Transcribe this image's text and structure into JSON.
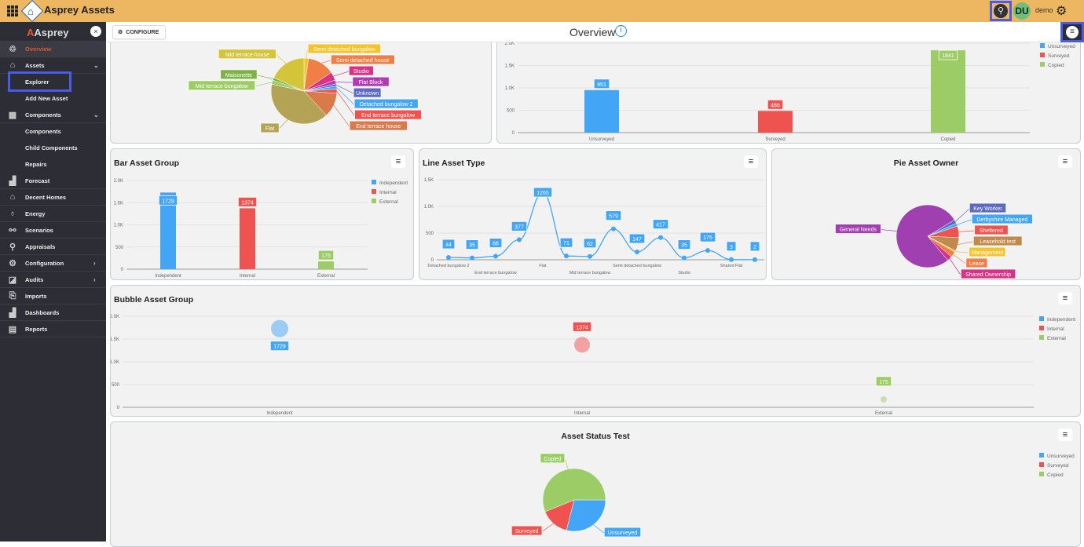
{
  "header": {
    "app_title": "Asprey Assets",
    "user_initials": "DU",
    "username": "demo"
  },
  "sidebar": {
    "logo": "Asprey",
    "close": "×",
    "items": [
      {
        "label": "Overview",
        "icon": "overview-icon",
        "glyph": "♲",
        "active": true
      },
      {
        "label": "Assets",
        "icon": "house-icon",
        "glyph": "⌂",
        "chevron": "⌄"
      },
      {
        "label": "Explorer",
        "sub": true
      },
      {
        "label": "Add New Asset",
        "sub": true
      },
      {
        "label": "Components",
        "icon": "grid-icon",
        "glyph": "▦",
        "chevron": "⌄"
      },
      {
        "label": "Components",
        "sub": true
      },
      {
        "label": "Child Components",
        "sub": true
      },
      {
        "label": "Repairs",
        "sub": true
      },
      {
        "label": "Forecast",
        "icon": "forecast-icon",
        "glyph": "▟"
      },
      {
        "label": "Decent Homes",
        "icon": "decent-homes-icon",
        "glyph": "⌂"
      },
      {
        "label": "Energy",
        "icon": "energy-icon",
        "glyph": "♁"
      },
      {
        "label": "Scenarios",
        "icon": "scenarios-icon",
        "glyph": "⚯"
      },
      {
        "label": "Appraisals",
        "icon": "appraisals-icon",
        "glyph": "⚲"
      },
      {
        "label": "Configuration",
        "icon": "configuration-icon",
        "glyph": "⚙",
        "chevron": "›"
      },
      {
        "label": "Audits",
        "icon": "audits-icon",
        "glyph": "◪",
        "chevron": "›"
      },
      {
        "label": "Imports",
        "icon": "imports-icon",
        "glyph": "⎘"
      },
      {
        "label": "Dashboards",
        "icon": "dashboards-icon",
        "glyph": "▟"
      },
      {
        "label": "Reports",
        "icon": "reports-icon",
        "glyph": "▤"
      }
    ]
  },
  "toolbar": {
    "configure": "CONFIGURE",
    "page_title": "Overview",
    "info": "i",
    "menu": "≡"
  },
  "colors": {
    "blue": "#42a5f5",
    "red": "#ef5350",
    "green": "#9ccc65"
  },
  "chart_data": [
    {
      "id": "pie-asset-type",
      "type": "pie",
      "title": "",
      "labels": [
        "Semi detached bungalow",
        "Semi detached house",
        "Studio",
        "Flat Block",
        "Unknown",
        "Detached bungalow 2",
        "End terrace bungalow",
        "End terrace house",
        "Flat",
        "Mid terrace bungalow",
        "Maisonette",
        "Mid terrace house"
      ],
      "values": [
        70,
        417,
        130,
        60,
        35,
        44,
        66,
        377,
        1265,
        62,
        40,
        579
      ],
      "colors": [
        "#f4c430",
        "#ef7f45",
        "#d63384",
        "#b23bb5",
        "#5c6bc0",
        "#42a5f5",
        "#ef5350",
        "#d9794c",
        "#b5a355",
        "#9ccc65",
        "#7cb342",
        "#d4c43a"
      ]
    },
    {
      "id": "bar-status",
      "type": "bar",
      "title": "",
      "categories": [
        "Unsurveyed",
        "Surveyed",
        "Copied"
      ],
      "values": [
        951,
        486,
        1841
      ],
      "yticks": [
        "0",
        "500",
        "1.0K",
        "1.5K",
        "2.0K"
      ],
      "ylim": [
        0,
        2000
      ],
      "legend": [
        "Unsurveyed",
        "Surveyed",
        "Copied"
      ]
    },
    {
      "id": "bar-asset-group",
      "type": "bar",
      "title": "Bar Asset Group",
      "categories": [
        "Independent",
        "Internal",
        "External"
      ],
      "values": [
        1729,
        1374,
        175
      ],
      "yticks": [
        "0",
        "500",
        "1.0K",
        "1.5K",
        "2.0K"
      ],
      "ylim": [
        0,
        2000
      ],
      "legend": [
        "Independent",
        "Internal",
        "External"
      ]
    },
    {
      "id": "line-asset-type",
      "type": "line",
      "title": "Line Asset Type",
      "categories": [
        "Detached bungalow 2",
        "",
        "End terrace bungalow",
        "",
        "Flat",
        "",
        "Mid terrace bungalow",
        "",
        "Semi detached bungalow",
        "",
        "Studio",
        "",
        "Shared Flat",
        ""
      ],
      "values": [
        44,
        35,
        66,
        377,
        1265,
        71,
        62,
        579,
        147,
        417,
        35,
        175,
        3,
        2
      ],
      "yticks": [
        "0",
        "500",
        "1.0K",
        "1.5K"
      ],
      "ylim": [
        0,
        1500
      ]
    },
    {
      "id": "pie-asset-owner",
      "type": "pie",
      "title": "Pie Asset Owner",
      "labels": [
        "Key Worker",
        "Derbyshire Managed",
        "Sheltered",
        "Leasehold test",
        "Management",
        "Lease",
        "Shared Ownership",
        "General Needs"
      ],
      "values": [
        2,
        1.5,
        6,
        7,
        0.7,
        3,
        2.5,
        77.3
      ],
      "colors": [
        "#5c6bc0",
        "#42a5f5",
        "#ef5350",
        "#c08a4e",
        "#f4c430",
        "#ef7f45",
        "#d63384",
        "#a040b0"
      ]
    },
    {
      "id": "bubble-asset-group",
      "type": "scatter",
      "title": "Bubble Asset Group",
      "categories": [
        "Independent",
        "Internal",
        "External"
      ],
      "values": [
        1729,
        1374,
        175
      ],
      "yticks": [
        "0",
        "500",
        "1.0K",
        "1.5K",
        "2.0K"
      ],
      "ylim": [
        0,
        2000
      ],
      "legend": [
        "Independent",
        "Internal",
        "External"
      ]
    },
    {
      "id": "pie-asset-status",
      "type": "pie",
      "title": "Asset Status Test",
      "labels": [
        "Unsurveyed",
        "Surveyed",
        "Copied"
      ],
      "values": [
        951,
        486,
        1841
      ],
      "colors": [
        "#42a5f5",
        "#ef5350",
        "#9ccc65"
      ],
      "legend": [
        "Unsurveyed",
        "Surveyed",
        "Copied"
      ]
    }
  ]
}
